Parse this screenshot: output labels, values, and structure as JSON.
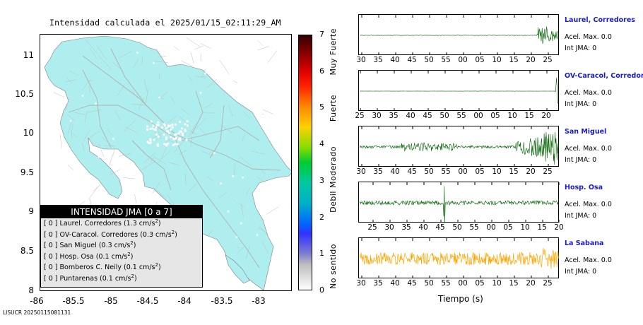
{
  "map": {
    "title": "Intensidad calculada el 2025/01/15_02:11:29_AM",
    "y_ticks": [
      "11",
      "10.5",
      "10",
      "9.5",
      "9",
      "8.5",
      "8"
    ],
    "x_ticks": [
      "-86",
      "-85.5",
      "-85",
      "-84.5",
      "-84",
      "-83.5",
      "-83"
    ],
    "land_color": "#afeeee",
    "road_color": "#b0b0b0"
  },
  "legend": {
    "header": "INTENSIDAD JMA [0 a 7]",
    "rows": [
      {
        "code": "[ 0 ]",
        "text": "Laurel. Corredores (1.3 cm/s",
        "sup": "2",
        "close": ")"
      },
      {
        "code": "[ 0 ]",
        "text": "OV-Caracol. Corredores (0.3 cm/s",
        "sup": "2",
        "close": ")"
      },
      {
        "code": "[ 0 ]",
        "text": "San Miguel (0.3 cm/s",
        "sup": "2",
        "close": ")"
      },
      {
        "code": "[ 0 ]",
        "text": "Hosp. Osa (0.1 cm/s",
        "sup": "2",
        "close": ")"
      },
      {
        "code": "[ 0 ]",
        "text": "Bomberos C. Neily (0.1 cm/s",
        "sup": "2",
        "close": ")"
      },
      {
        "code": "[ 0 ]",
        "text": "Puntarenas (0.1 cm/s",
        "sup": "2",
        "close": ")"
      }
    ]
  },
  "colorbar": {
    "ticks": [
      "7",
      "6",
      "5",
      "4",
      "3",
      "2",
      "1",
      "0"
    ],
    "words": [
      "Muy Fuerte",
      "Fuerte",
      "Moderado",
      "Debil",
      "No sentido"
    ]
  },
  "chart_data": [
    {
      "type": "line",
      "title": "Intensidad calculada el 2025/01/15_02:11:29_AM",
      "note": "map of Costa Rica with JMA intensity colorbar",
      "x_ticks": [
        "-86",
        "-85.5",
        "-85",
        "-84.5",
        "-84",
        "-83.5",
        "-83"
      ],
      "y_ticks": [
        "11",
        "10.5",
        "10",
        "9.5",
        "9",
        "8.5",
        "8"
      ],
      "colorbar_range": [
        0,
        7
      ]
    },
    {
      "type": "line",
      "xlabel": "Tiempo (s)",
      "series": [
        {
          "name": "Laurel, Corredores",
          "color": "#006400",
          "x_ticks": [
            "30",
            "35",
            "40",
            "45",
            "50",
            "55",
            "00",
            "05",
            "10",
            "15",
            "20",
            "25"
          ],
          "acel": "Acel. Max. 0.0",
          "int": "Int JMA: 0"
        },
        {
          "name": "OV-Caracol, Corredores",
          "color": "#006400",
          "x_ticks": [
            "25",
            "30",
            "35",
            "40",
            "45",
            "50",
            "55",
            "00",
            "05",
            "10",
            "15",
            "20"
          ],
          "acel": "Acel. Max. 0.0",
          "int": "Int JMA: 0"
        },
        {
          "name": "San Miguel",
          "color": "#006400",
          "x_ticks": [
            "30",
            "35",
            "40",
            "45",
            "50",
            "55",
            "00",
            "05",
            "10",
            "15",
            "20",
            "25"
          ],
          "acel": "Acel. Max. 0.0",
          "int": "Int JMA: 0"
        },
        {
          "name": "Hosp. Osa",
          "color": "#006400",
          "x_ticks": [
            "25",
            "30",
            "35",
            "40",
            "45",
            "50",
            "55",
            "00",
            "05",
            "10",
            "15",
            "20"
          ],
          "acel": "Acel. Max. 0.0",
          "int": "Int JMA: 0"
        },
        {
          "name": "La Sabana",
          "color": "#ffa500",
          "x_ticks": [
            "30",
            "35",
            "40",
            "45",
            "50",
            "55",
            "00",
            "05",
            "10",
            "15",
            "20",
            "25"
          ],
          "acel": "Acel. Max. 0.0",
          "int": "Int JMA: 0"
        }
      ]
    }
  ],
  "footer": "LISUCR 20250115081131"
}
